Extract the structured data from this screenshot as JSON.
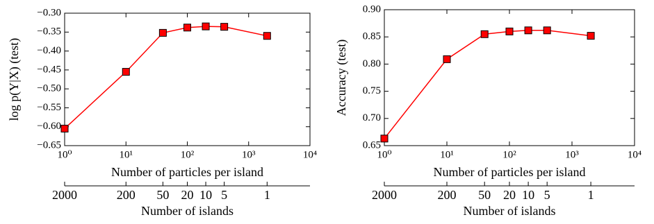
{
  "chart_data": [
    {
      "type": "line",
      "marker": "square",
      "color": "#ff0000",
      "xscale": "log",
      "ylabel": "log p(Y|X) (test)",
      "xlabel": "Number of particles per island",
      "x2label": "Number of islands",
      "x": [
        1,
        10,
        40,
        100,
        200,
        400,
        2000
      ],
      "values": [
        -0.605,
        -0.455,
        -0.352,
        -0.338,
        -0.335,
        -0.336,
        -0.36
      ],
      "xlim": [
        1,
        10000
      ],
      "xticks": [
        {
          "value": 1,
          "label": "10⁰"
        },
        {
          "value": 10,
          "label": "10¹"
        },
        {
          "value": 100,
          "label": "10²"
        },
        {
          "value": 1000,
          "label": "10³"
        },
        {
          "value": 10000,
          "label": "10⁴"
        }
      ],
      "x2lim": [
        2000,
        0.2
      ],
      "x2ticks": [
        2000,
        200,
        50,
        20,
        10,
        5,
        1
      ],
      "ylim": [
        -0.65,
        -0.3
      ],
      "yticks": [
        {
          "value": -0.65,
          "label": "−0.65"
        },
        {
          "value": -0.6,
          "label": "−0.60"
        },
        {
          "value": -0.55,
          "label": "−0.55"
        },
        {
          "value": -0.5,
          "label": "−0.50"
        },
        {
          "value": -0.45,
          "label": "−0.45"
        },
        {
          "value": -0.4,
          "label": "−0.40"
        },
        {
          "value": -0.35,
          "label": "−0.35"
        },
        {
          "value": -0.3,
          "label": "−0.30"
        }
      ]
    },
    {
      "type": "line",
      "marker": "square",
      "color": "#ff0000",
      "xscale": "log",
      "ylabel": "Accuracy (test)",
      "xlabel": "Number of particles per island",
      "x2label": "Number of islands",
      "x": [
        1,
        10,
        40,
        100,
        200,
        400,
        2000
      ],
      "values": [
        0.663,
        0.809,
        0.855,
        0.86,
        0.862,
        0.862,
        0.852
      ],
      "xlim": [
        1,
        10000
      ],
      "xticks": [
        {
          "value": 1,
          "label": "10⁰"
        },
        {
          "value": 10,
          "label": "10¹"
        },
        {
          "value": 100,
          "label": "10²"
        },
        {
          "value": 1000,
          "label": "10³"
        },
        {
          "value": 10000,
          "label": "10⁴"
        }
      ],
      "x2lim": [
        2000,
        0.2
      ],
      "x2ticks": [
        2000,
        200,
        50,
        20,
        10,
        5,
        1
      ],
      "ylim": [
        0.65,
        0.9
      ],
      "yticks": [
        0.65,
        {
          "value": 0.7,
          "label": "0.70"
        },
        0.75,
        {
          "value": 0.8,
          "label": "0.80"
        },
        0.85,
        {
          "value": 0.9,
          "label": "0.90"
        }
      ]
    }
  ]
}
